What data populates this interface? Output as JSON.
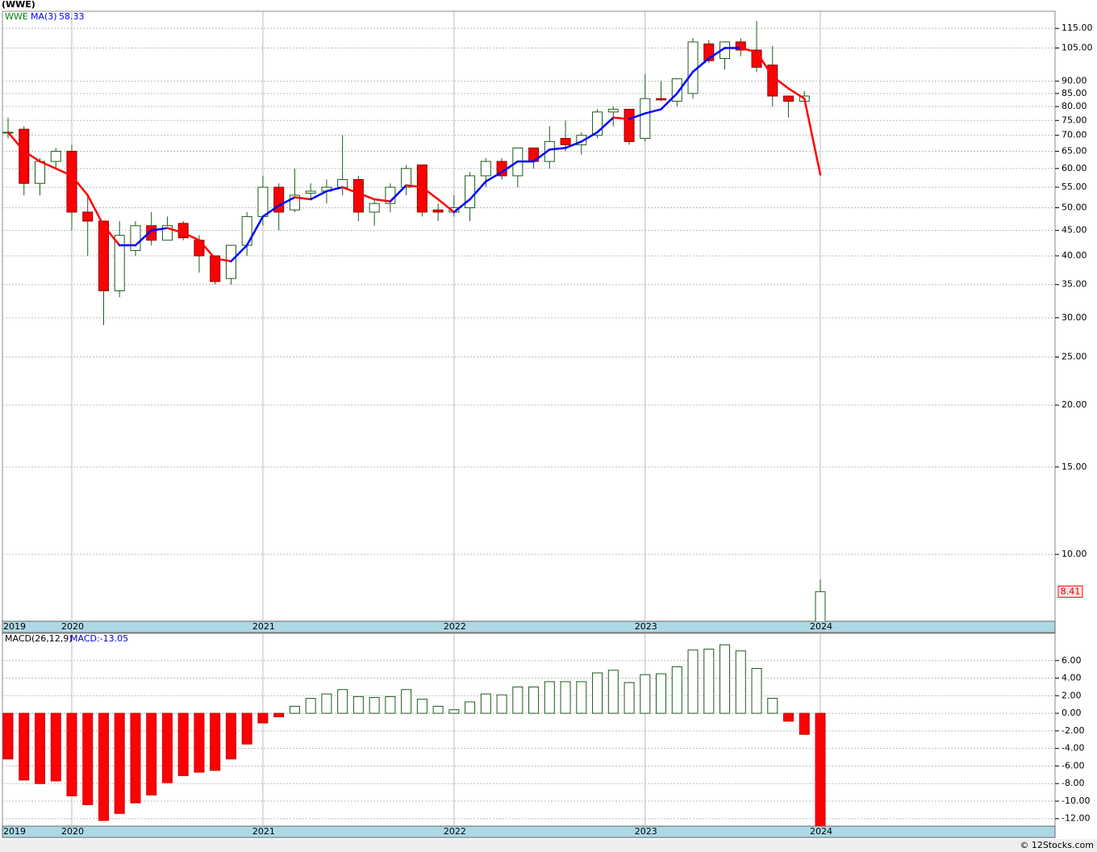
{
  "page_title": "(WWE)",
  "footer": "© 12Stocks.com",
  "chart_data": [
    {
      "type": "candlestick",
      "name": "WWE",
      "categories": [
        "2019",
        null,
        null,
        null,
        "2020",
        null,
        null,
        null,
        null,
        null,
        null,
        null,
        null,
        null,
        null,
        null,
        "2021",
        null,
        null,
        null,
        null,
        null,
        null,
        null,
        null,
        null,
        null,
        null,
        "2022",
        null,
        null,
        null,
        null,
        null,
        null,
        null,
        null,
        null,
        null,
        null,
        "2023",
        null,
        null,
        null,
        null,
        null,
        null,
        null,
        null,
        null,
        null,
        "2024"
      ],
      "open": [
        71,
        72,
        56,
        62,
        65,
        49,
        47,
        34,
        41,
        46,
        43,
        46.5,
        43,
        40,
        36,
        42,
        48,
        55,
        49.5,
        53.5,
        54,
        55,
        57,
        49,
        51,
        55,
        61,
        49.5,
        49,
        50,
        58,
        62,
        58,
        66,
        62,
        69,
        67,
        70,
        78,
        79,
        69,
        83,
        82,
        85,
        107,
        100,
        108,
        104,
        97,
        84,
        82,
        7.3
      ],
      "high": [
        76,
        73,
        63,
        66,
        67,
        53,
        47,
        47,
        47,
        49,
        48,
        47,
        44,
        40,
        42,
        49,
        58,
        56,
        60,
        56,
        57,
        70,
        58,
        52,
        56,
        61,
        61,
        51,
        53,
        59,
        63,
        63,
        66,
        66,
        73,
        75,
        71,
        79,
        80,
        79,
        93,
        90,
        91,
        110,
        109,
        108,
        110,
        119,
        106,
        84,
        86,
        8.9
      ],
      "low": [
        69,
        53,
        53,
        60,
        45,
        40,
        29,
        33,
        40,
        42,
        43,
        43,
        37,
        35,
        35,
        40,
        46,
        45,
        49,
        52,
        51,
        53,
        47,
        46,
        49,
        53,
        48,
        47,
        48,
        47,
        55,
        57,
        55,
        60,
        60,
        65,
        64,
        69,
        73,
        67,
        68,
        82,
        80,
        83,
        98,
        95,
        101,
        94,
        80,
        76,
        82,
        7.33
      ],
      "close": [
        71,
        56,
        62,
        65,
        49,
        47,
        34,
        44,
        46,
        43,
        46,
        43.5,
        40,
        35.5,
        42,
        48,
        55,
        49,
        53,
        54,
        55,
        57,
        49,
        51,
        55,
        60,
        49,
        49,
        50,
        58,
        62,
        58,
        66,
        62,
        68,
        67,
        70,
        78,
        79,
        68,
        83,
        82.5,
        91,
        108,
        99,
        108,
        104,
        96,
        84,
        82,
        84,
        8.41
      ],
      "up_color": "#ffffff",
      "down_color": "#ff0000",
      "wick_color": "#1a5c1a",
      "name_color": "#008000",
      "overlay": {
        "name": "MA(3)",
        "last_label": "58.33",
        "up_color": "#0000ff",
        "down_color": "#ff0000",
        "values": [
          71,
          65,
          62,
          60,
          58,
          53,
          46,
          42,
          42,
          45,
          45.5,
          44.5,
          43,
          39.5,
          39,
          42,
          48,
          50.5,
          52.5,
          52,
          54,
          55,
          53.5,
          52,
          51.5,
          55.5,
          55,
          52,
          49,
          52,
          56.5,
          59,
          62,
          62,
          65.5,
          66,
          68,
          71,
          76,
          75.5,
          77.5,
          79,
          85,
          94,
          100,
          105,
          105,
          103,
          92,
          87,
          83,
          58.33
        ]
      },
      "last_label": "8.41",
      "log_scale": true,
      "grid": true,
      "ylim": [
        7.33,
        124.5
      ],
      "yticks": [
        {
          "value": 10,
          "label": "10.00"
        },
        {
          "value": 15,
          "label": "15.00"
        },
        {
          "value": 20,
          "label": "20.00"
        },
        {
          "value": 25,
          "label": "25.00"
        },
        {
          "value": 30,
          "label": "30.00"
        },
        {
          "value": 35,
          "label": "35.00"
        },
        {
          "value": 40,
          "label": "40.00"
        },
        {
          "value": 45,
          "label": "45.00"
        },
        {
          "value": 50,
          "label": "50.00"
        },
        {
          "value": 55,
          "label": "55.00"
        },
        {
          "value": 60,
          "label": "60.00"
        },
        {
          "value": 65,
          "label": "65.00"
        },
        {
          "value": 70,
          "label": "70.00"
        },
        {
          "value": 75,
          "label": "75.00"
        },
        {
          "value": 80,
          "label": "80.00"
        },
        {
          "value": 85,
          "label": "85.00"
        },
        {
          "value": 90,
          "label": "90.00"
        },
        {
          "value": 105,
          "label": "105.00"
        },
        {
          "value": 115,
          "label": "115.00"
        }
      ]
    },
    {
      "type": "bar",
      "name": "MACD(26,12,9)",
      "last_label": "MACD:-13.05",
      "categories": [
        "2019",
        null,
        null,
        null,
        "2020",
        null,
        null,
        null,
        null,
        null,
        null,
        null,
        null,
        null,
        null,
        null,
        "2021",
        null,
        null,
        null,
        null,
        null,
        null,
        null,
        null,
        null,
        null,
        null,
        "2022",
        null,
        null,
        null,
        null,
        null,
        null,
        null,
        null,
        null,
        null,
        null,
        "2023",
        null,
        null,
        null,
        null,
        null,
        null,
        null,
        null,
        null,
        null,
        "2024"
      ],
      "values": [
        -5.2,
        -7.6,
        -8,
        -7.7,
        -9.4,
        -10.4,
        -12.2,
        -11.4,
        -10.2,
        -9.3,
        -7.9,
        -7.1,
        -6.7,
        -6.5,
        -5.2,
        -3.5,
        -1.1,
        -0.4,
        0.8,
        1.7,
        2.2,
        2.7,
        1.9,
        1.8,
        1.9,
        2.7,
        1.6,
        0.8,
        0.4,
        1.3,
        2.2,
        2.1,
        3,
        3,
        3.6,
        3.6,
        3.6,
        4.6,
        4.9,
        3.5,
        4.4,
        4.5,
        5.3,
        7.2,
        7.3,
        7.8,
        7.1,
        5.1,
        1.7,
        -0.9,
        -2.4,
        -13.05
      ],
      "positive_color": "#1a5c1a",
      "negative_color": "#ff0000",
      "grid": true,
      "ylim": [
        -12.85,
        9.1
      ],
      "yticks": [
        {
          "value": -12,
          "label": "-12.00"
        },
        {
          "value": -10,
          "label": "-10.00"
        },
        {
          "value": -8,
          "label": "-8.00"
        },
        {
          "value": -6,
          "label": "-6.00"
        },
        {
          "value": -4,
          "label": "-4.00"
        },
        {
          "value": -2,
          "label": "-2.00"
        },
        {
          "value": 0,
          "label": "0.00"
        },
        {
          "value": 2,
          "label": "2.00"
        },
        {
          "value": 4,
          "label": "4.00"
        },
        {
          "value": 6,
          "label": "6.00"
        }
      ]
    }
  ]
}
